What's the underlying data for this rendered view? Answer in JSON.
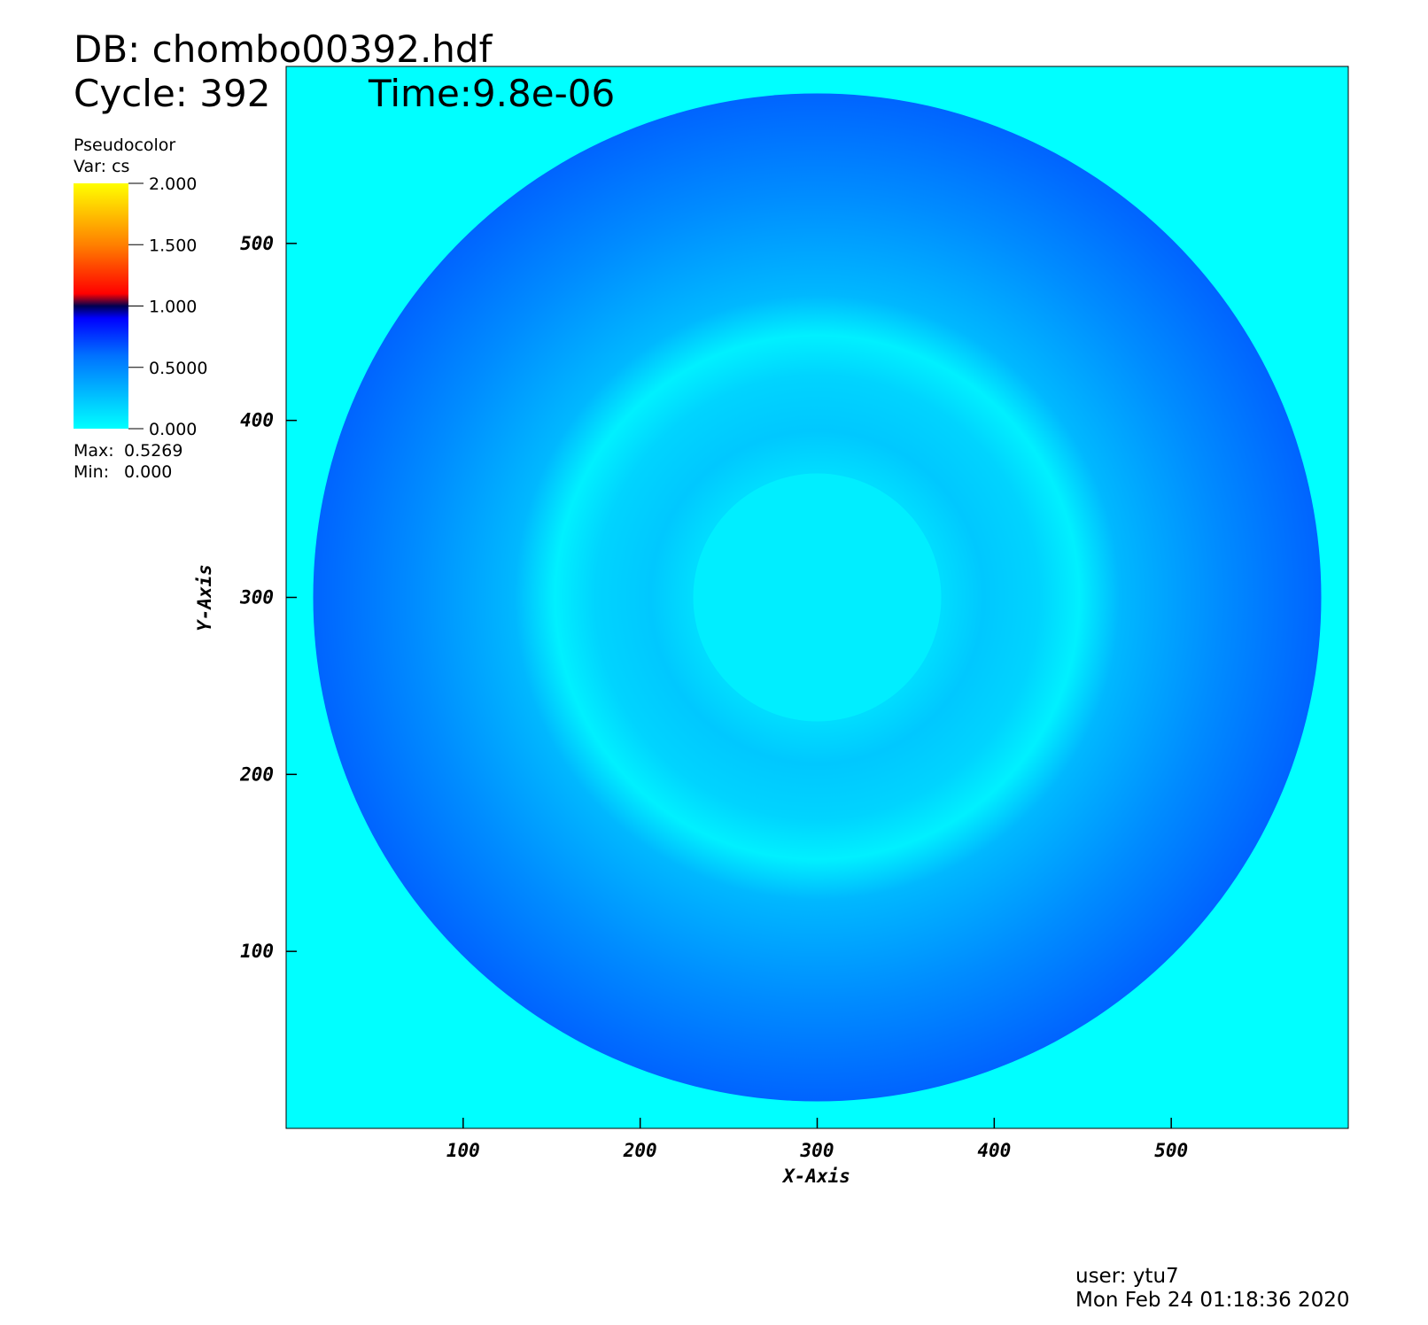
{
  "chart_data": {
    "type": "pseudocolor",
    "db_label": "DB: chombo00392.hdf",
    "cycle_label": "Cycle: 392",
    "time_label": "Time:9.8e-06",
    "legend_title": "Pseudocolor",
    "legend_var": "Var: cs",
    "colorbar_lim": [
      0,
      2
    ],
    "colorbar_ticks": [
      {
        "value": 2,
        "label": "2.000"
      },
      {
        "value": 1.5,
        "label": "1.500"
      },
      {
        "value": 1,
        "label": "1.000"
      },
      {
        "value": 0.5,
        "label": "0.5000"
      },
      {
        "value": 0,
        "label": "0.000"
      }
    ],
    "max_label": "Max:",
    "max": {
      "value": 0.5269,
      "label": "0.5269"
    },
    "min_label": "Min:",
    "min": {
      "value": 0,
      "label": "0.000"
    },
    "xlabel": "X-Axis",
    "ylabel": "Y-Axis",
    "xlim": [
      0,
      600
    ],
    "ylim": [
      0,
      600
    ],
    "xticks": [
      100,
      200,
      300,
      400,
      500
    ],
    "yticks": [
      100,
      200,
      300,
      400,
      500
    ],
    "user_label": "user: ytu7",
    "date_label": "Mon Feb 24 01:18:36 2020"
  }
}
